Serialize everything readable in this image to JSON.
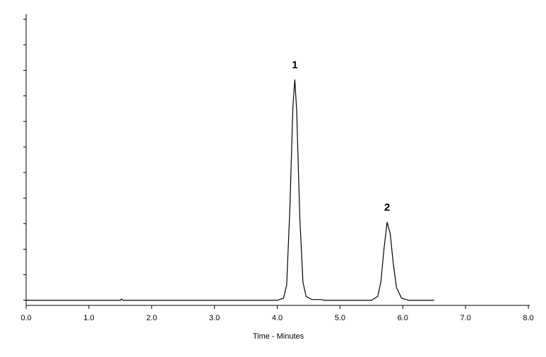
{
  "chart_data": {
    "type": "line",
    "x_label": "Time - Minutes",
    "x": [
      0,
      1.5,
      1.52,
      1.54,
      4.0,
      4.1,
      4.15,
      4.2,
      4.25,
      4.28,
      4.31,
      4.36,
      4.41,
      4.46,
      4.55,
      4.7,
      4.75,
      5.5,
      5.6,
      5.65,
      5.7,
      5.75,
      5.8,
      5.85,
      5.9,
      5.98,
      6.1,
      6.5
    ],
    "values": [
      0,
      0,
      0.05,
      0,
      0,
      0.08,
      0.6,
      3.5,
      7.6,
      8.64,
      7.4,
      3.2,
      0.7,
      0.15,
      0.03,
      0.03,
      0,
      0,
      0.15,
      0.7,
      2.0,
      3.06,
      2.6,
      1.4,
      0.5,
      0.08,
      0,
      0
    ],
    "color": "#000000",
    "xlim": [
      0,
      8
    ],
    "xticks": [
      {
        "value": 0,
        "label": "0.0"
      },
      {
        "value": 1,
        "label": "1.0"
      },
      {
        "value": 2,
        "label": "2.0"
      },
      {
        "value": 3,
        "label": "3.0"
      },
      {
        "value": 4,
        "label": "4.0"
      },
      {
        "value": 5,
        "label": "5.0"
      },
      {
        "value": 6,
        "label": "6.0"
      },
      {
        "value": 7,
        "label": "7.0"
      },
      {
        "value": 8,
        "label": "8.0"
      }
    ],
    "ylim": [
      -0.2,
      11.2
    ],
    "yticks": [
      0,
      1,
      2,
      3,
      4,
      5,
      6,
      7,
      8,
      9,
      10,
      11
    ],
    "annotations": [
      {
        "text": "1",
        "x": 4.28,
        "y": 8.64
      },
      {
        "text": "2",
        "x": 5.75,
        "y": 3.06
      }
    ]
  }
}
